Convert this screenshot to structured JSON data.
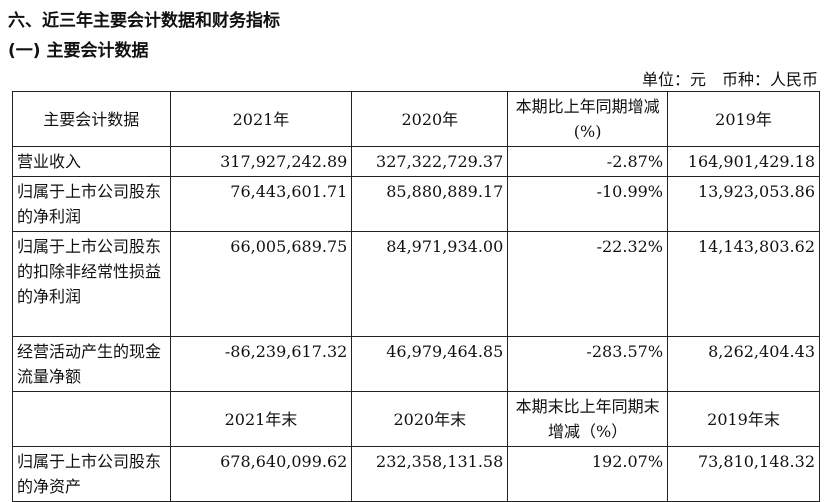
{
  "title": "六、近三年主要会计数据和财务指标",
  "subtitle": "(一) 主要会计数据",
  "unit": {
    "unit": "单位：元",
    "currency": "币种：人民币"
  },
  "header": [
    "主要会计数据",
    "2021年",
    "2020年",
    "本期比上年同期增减(%)",
    "2019年"
  ],
  "rows": [
    [
      "营业收入",
      "317,927,242.89",
      "327,322,729.37",
      "-2.87%",
      "164,901,429.18"
    ],
    [
      "归属于上市公司股东的净利润",
      "76,443,601.71",
      "85,880,889.17",
      "-10.99%",
      "13,923,053.86"
    ],
    [
      "归属于上市公司股东的扣除非经常性损益的净利润",
      "66,005,689.75",
      "84,971,934.00",
      "-22.32%",
      "14,143,803.62"
    ],
    [
      "经营活动产生的现金流量净额",
      "-86,239,617.32",
      "46,979,464.85",
      "-283.57%",
      "8,262,404.43"
    ]
  ],
  "header2": [
    "",
    "2021年末",
    "2020年末",
    "本期末比上年同期末增减（%）",
    "2019年末"
  ],
  "rows2": [
    [
      "归属于上市公司股东的净资产",
      "678,640,099.62",
      "232,358,131.58",
      "192.07%",
      "73,810,148.32"
    ]
  ]
}
